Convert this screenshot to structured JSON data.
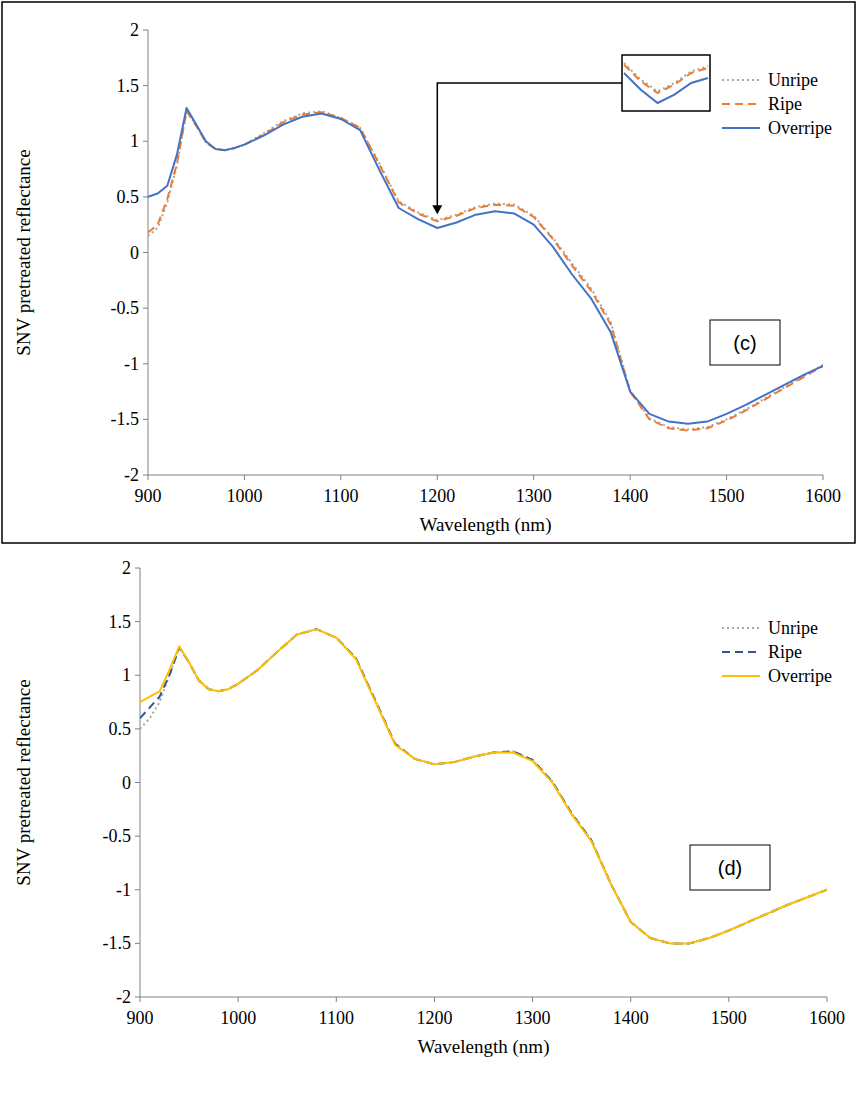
{
  "chart_data": [
    {
      "type": "line",
      "x_label": "Wavelength (nm)",
      "y_label": "SNV pretreated reflectance",
      "annotations": [
        "(c)"
      ],
      "legend": "upper right",
      "x": [
        900,
        910,
        920,
        930,
        940,
        950,
        960,
        970,
        980,
        990,
        1000,
        1020,
        1040,
        1060,
        1080,
        1100,
        1120,
        1140,
        1160,
        1180,
        1200,
        1220,
        1240,
        1260,
        1280,
        1300,
        1320,
        1340,
        1360,
        1380,
        1400,
        1420,
        1440,
        1460,
        1480,
        1500,
        1520,
        1540,
        1560,
        1580,
        1600
      ],
      "series": [
        {
          "name": "Unripe",
          "color": "#a6a6a6",
          "line_style": "dotted",
          "values": [
            0.15,
            0.22,
            0.45,
            0.78,
            1.28,
            1.14,
            0.99,
            0.93,
            0.92,
            0.94,
            0.97,
            1.07,
            1.18,
            1.25,
            1.27,
            1.21,
            1.12,
            0.8,
            0.46,
            0.36,
            0.29,
            0.34,
            0.41,
            0.44,
            0.43,
            0.33,
            0.13,
            -0.1,
            -0.33,
            -0.63,
            -1.24,
            -1.49,
            -1.57,
            -1.59,
            -1.57,
            -1.5,
            -1.41,
            -1.31,
            -1.21,
            -1.11,
            -1.01
          ]
        },
        {
          "name": "Ripe",
          "color": "#ed7d31",
          "line_style": "dashed",
          "values": [
            0.18,
            0.25,
            0.48,
            0.8,
            1.27,
            1.14,
            0.99,
            0.93,
            0.92,
            0.94,
            0.97,
            1.06,
            1.17,
            1.24,
            1.26,
            1.21,
            1.12,
            0.79,
            0.45,
            0.35,
            0.28,
            0.33,
            0.4,
            0.43,
            0.42,
            0.32,
            0.12,
            -0.12,
            -0.35,
            -0.65,
            -1.25,
            -1.5,
            -1.58,
            -1.6,
            -1.58,
            -1.51,
            -1.42,
            -1.32,
            -1.22,
            -1.12,
            -1.02
          ]
        },
        {
          "name": "Overripe",
          "color": "#4472c4",
          "line_style": "solid",
          "values": [
            0.5,
            0.53,
            0.6,
            0.88,
            1.3,
            1.15,
            1.0,
            0.93,
            0.92,
            0.94,
            0.97,
            1.05,
            1.15,
            1.22,
            1.25,
            1.2,
            1.1,
            0.74,
            0.4,
            0.3,
            0.22,
            0.27,
            0.34,
            0.37,
            0.35,
            0.25,
            0.05,
            -0.2,
            -0.42,
            -0.72,
            -1.25,
            -1.45,
            -1.52,
            -1.54,
            -1.52,
            -1.45,
            -1.37,
            -1.28,
            -1.19,
            -1.1,
            -1.02
          ]
        }
      ],
      "xlim": [
        900,
        1600
      ],
      "ylim": [
        -2,
        2
      ],
      "xticks": [
        900,
        1000,
        1100,
        1200,
        1300,
        1400,
        1500,
        1600
      ],
      "yticks": [
        -2,
        -1.5,
        -1,
        -0.5,
        0,
        0.5,
        1,
        1.5,
        2
      ],
      "grid": false
    },
    {
      "type": "line",
      "x_label": "Wavelength (nm)",
      "y_label": "SNV pretreated reflectance",
      "annotations": [
        "(d)"
      ],
      "legend": "upper right",
      "x": [
        900,
        910,
        920,
        930,
        940,
        950,
        960,
        970,
        980,
        990,
        1000,
        1020,
        1040,
        1060,
        1080,
        1100,
        1120,
        1140,
        1160,
        1180,
        1200,
        1220,
        1240,
        1260,
        1280,
        1300,
        1320,
        1340,
        1360,
        1380,
        1400,
        1420,
        1440,
        1460,
        1480,
        1500,
        1520,
        1540,
        1560,
        1580,
        1600
      ],
      "series": [
        {
          "name": "Unripe",
          "color": "#a6a6a6",
          "line_style": "dotted",
          "values": [
            0.5,
            0.6,
            0.75,
            1.0,
            1.26,
            1.12,
            0.95,
            0.87,
            0.85,
            0.87,
            0.92,
            1.05,
            1.22,
            1.38,
            1.43,
            1.35,
            1.16,
            0.76,
            0.36,
            0.22,
            0.17,
            0.19,
            0.24,
            0.28,
            0.29,
            0.21,
            0.01,
            -0.29,
            -0.54,
            -0.95,
            -1.3,
            -1.45,
            -1.5,
            -1.5,
            -1.45,
            -1.38,
            -1.3,
            -1.22,
            -1.14,
            -1.07,
            -1.0
          ]
        },
        {
          "name": "Ripe",
          "color": "#2f5597",
          "line_style": "dashed",
          "values": [
            0.6,
            0.7,
            0.8,
            1.0,
            1.26,
            1.12,
            0.95,
            0.87,
            0.85,
            0.87,
            0.92,
            1.05,
            1.22,
            1.38,
            1.43,
            1.35,
            1.16,
            0.76,
            0.36,
            0.22,
            0.17,
            0.19,
            0.24,
            0.28,
            0.29,
            0.21,
            0.01,
            -0.29,
            -0.54,
            -0.95,
            -1.3,
            -1.45,
            -1.5,
            -1.5,
            -1.45,
            -1.38,
            -1.3,
            -1.22,
            -1.14,
            -1.07,
            -1.0
          ]
        },
        {
          "name": "Overripe",
          "color": "#ffc000",
          "line_style": "solid",
          "values": [
            0.75,
            0.8,
            0.85,
            1.05,
            1.27,
            1.12,
            0.95,
            0.87,
            0.85,
            0.87,
            0.92,
            1.05,
            1.22,
            1.38,
            1.43,
            1.35,
            1.15,
            0.75,
            0.35,
            0.22,
            0.17,
            0.19,
            0.24,
            0.28,
            0.28,
            0.2,
            0,
            -0.3,
            -0.55,
            -0.95,
            -1.3,
            -1.45,
            -1.5,
            -1.5,
            -1.45,
            -1.38,
            -1.3,
            -1.22,
            -1.14,
            -1.07,
            -1.0
          ]
        }
      ],
      "xlim": [
        900,
        1600
      ],
      "ylim": [
        -2,
        2
      ],
      "xticks": [
        900,
        1000,
        1100,
        1200,
        1300,
        1400,
        1500,
        1600
      ],
      "yticks": [
        -2,
        -1.5,
        -1,
        -0.5,
        0,
        0.5,
        1,
        1.5,
        2
      ],
      "grid": false
    }
  ]
}
